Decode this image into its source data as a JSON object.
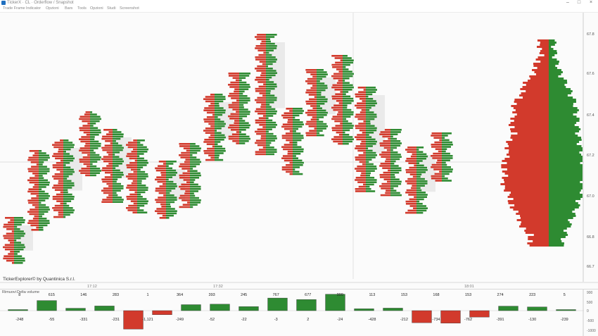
{
  "window": {
    "title": "TickerX · CL · Orderflow / Snapshot"
  },
  "menu": [
    "Trade Frame",
    "Indicator",
    "Opzioni",
    "Bars",
    "Tools",
    "Opzioni",
    "Studi",
    "Screenshot"
  ],
  "main_chart": {
    "watermark": "TickerExplorer© by Quantinica S.r.l.",
    "price_labels": [
      "67.8",
      "67.6",
      "67.4",
      "67.2",
      "67.0",
      "66.8",
      "66.7"
    ],
    "time_labels": [
      "17:12",
      "17:32",
      "18:01"
    ],
    "colors": {
      "buy": "#2e8b32",
      "sell": "#d23a2c",
      "value_area": "#e6e6e6"
    }
  },
  "chart_data": {
    "type": "bar",
    "title": "",
    "panel_tabs": [
      "Rimuovi",
      "Delta volume"
    ],
    "bar_values": [
      8,
      615,
      146,
      283,
      -1121,
      -249,
      364,
      393,
      245,
      767,
      677,
      999,
      113,
      153,
      -734,
      -762,
      -391,
      274,
      223,
      5
    ],
    "top_labels": [
      "8",
      "615",
      "146",
      "283",
      "1",
      "364",
      "393",
      "245",
      "767",
      "677",
      "999",
      "113",
      "153",
      "168",
      "153",
      "274",
      "223",
      "5"
    ],
    "bottom_labels": [
      "-248",
      "-55",
      "-331",
      "-231",
      "-1,121",
      "-249",
      "-52",
      "-22",
      "-3",
      "2",
      "-24",
      "-428",
      "-212",
      "-734",
      "-762",
      "-391",
      "-130",
      "-239"
    ],
    "y_ticks": [
      "900",
      "500",
      "0",
      "-500",
      "-1000"
    ],
    "ylim": [
      -1200,
      1000
    ]
  }
}
